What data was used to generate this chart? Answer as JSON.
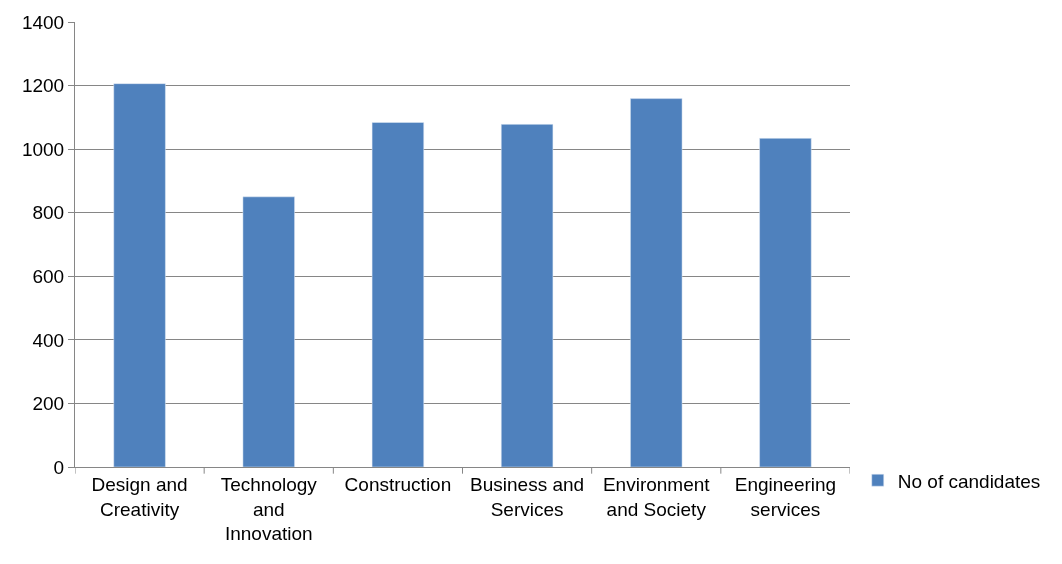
{
  "chart_data": {
    "type": "bar",
    "categories": [
      "Design and Creativity",
      "Technology and Innovation",
      "Construction",
      "Business and Services",
      "Environment and Society",
      "Engineering services"
    ],
    "series": [
      {
        "name": "No of candidates",
        "color": "#4f81bd",
        "values": [
          1206,
          850,
          1084,
          1078,
          1159,
          1034
        ]
      }
    ],
    "ylim": [
      0,
      1400
    ],
    "yticks": [
      0,
      200,
      400,
      600,
      800,
      1000,
      1200,
      1400
    ],
    "grid": "y",
    "legend": "right"
  }
}
